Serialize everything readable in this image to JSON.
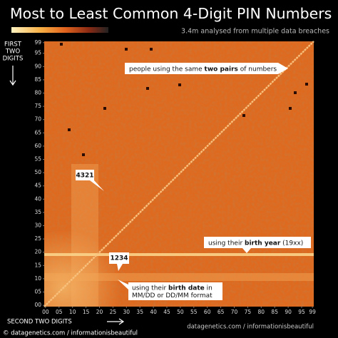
{
  "chart_data": {
    "type": "heatmap",
    "title": "Most to Least Common 4-Digit PIN Numbers",
    "subtitle": "3.4m analysed from multiple data breaches",
    "ylabel": [
      "FIRST",
      "TWO",
      "DIGITS"
    ],
    "xlabel": "SECOND TWO DIGITS",
    "xlim": [
      0,
      100
    ],
    "ylim": [
      0,
      100
    ],
    "xticks": [
      {
        "value": 0,
        "label": "00"
      },
      {
        "value": 5,
        "label": "05"
      },
      10,
      15,
      20,
      25,
      30,
      35,
      40,
      45,
      50,
      55,
      60,
      65,
      70,
      75,
      80,
      85,
      90,
      95,
      99
    ],
    "yticks": [
      {
        "value": 0,
        "label": "00"
      },
      {
        "value": 5,
        "label": "05"
      },
      10,
      15,
      20,
      25,
      30,
      35,
      40,
      45,
      50,
      55,
      60,
      65,
      70,
      75,
      80,
      85,
      90,
      95,
      99
    ],
    "annotations": [
      {
        "parts": [
          "people using the same ",
          "two pairs",
          " of numbers"
        ]
      },
      {
        "parts": [
          "4321"
        ]
      },
      {
        "parts": [
          "using their ",
          "birth year",
          " (19xx)"
        ]
      },
      {
        "parts": [
          "1234"
        ]
      },
      {
        "parts": [
          "using their ",
          "birth date",
          " in"
        ],
        "line2": "MM/DD or DD/MM format"
      }
    ],
    "credit": "datagenetics.com / informationisbeautiful",
    "footer": "© datagenetics.com / informationisbeautiful"
  }
}
